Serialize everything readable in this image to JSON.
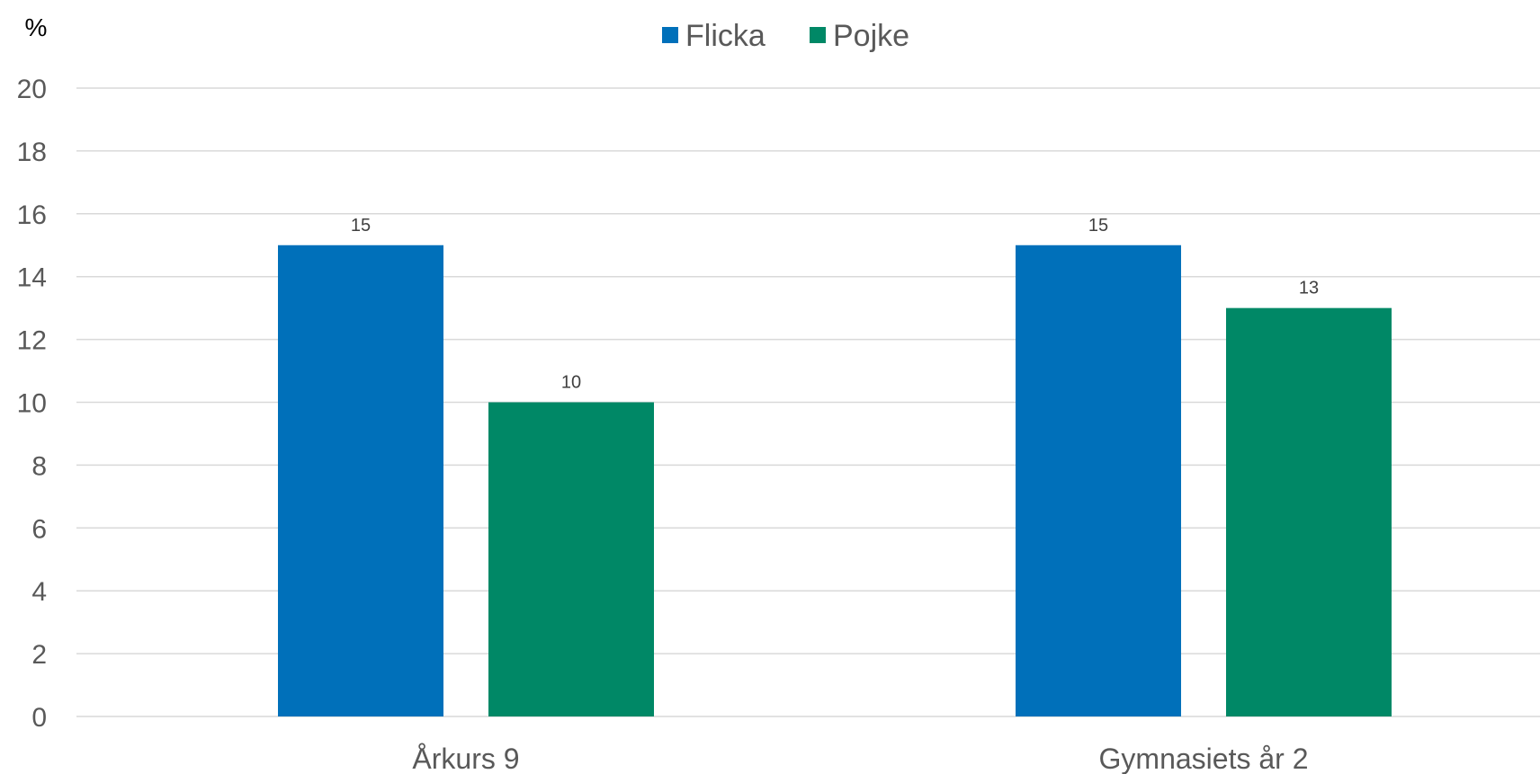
{
  "chart_data": {
    "type": "bar",
    "ylabel": "%",
    "ylim": [
      0,
      20
    ],
    "ytick_step": 2,
    "grid": true,
    "legend_position": "top-center",
    "categories": [
      "Årkurs 9",
      "Gymnasiets år 2"
    ],
    "series": [
      {
        "name": "Flicka",
        "color": "#0070BA",
        "values": [
          15,
          15
        ]
      },
      {
        "name": "Pojke",
        "color": "#008866",
        "values": [
          10,
          13
        ]
      }
    ],
    "data_labels": true
  }
}
